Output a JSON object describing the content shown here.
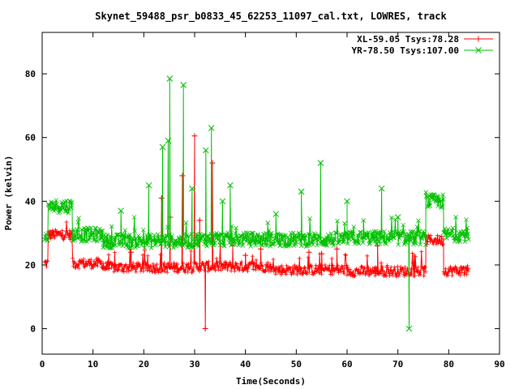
{
  "chart_data": {
    "type": "line",
    "title": "Skynet_59488_psr_b0833_45_62253_11097_cal.txt, LOWRES, track",
    "xlabel": "Time(Seconds)",
    "ylabel": "Power (kelvin)",
    "xlim": [
      0,
      90
    ],
    "ylim": [
      -8,
      93
    ],
    "xticks": [
      0,
      10,
      20,
      30,
      40,
      50,
      60,
      70,
      80,
      90
    ],
    "yticks": [
      0,
      20,
      40,
      60,
      80
    ],
    "grid": false,
    "legend_position": "top-right",
    "series": [
      {
        "name": "XL-59.05 Tsys:78.28",
        "color": "#ff0000",
        "marker": "plus",
        "segments": [
          {
            "x0": 0.5,
            "x1": 1.2,
            "mean": 20.5
          },
          {
            "x0": 1.2,
            "x1": 6.0,
            "mean": 29.5
          },
          {
            "x0": 6.0,
            "x1": 12.0,
            "mean": 20.5
          },
          {
            "x0": 12.0,
            "x1": 30.0,
            "mean": 19.2
          },
          {
            "x0": 30.0,
            "x1": 45.0,
            "mean": 19.5
          },
          {
            "x0": 45.0,
            "x1": 60.0,
            "mean": 18.5
          },
          {
            "x0": 60.0,
            "x1": 75.5,
            "mean": 18.0
          },
          {
            "x0": 75.5,
            "x1": 79.0,
            "mean": 27.8
          },
          {
            "x0": 79.0,
            "x1": 84.0,
            "mean": 18.2
          }
        ],
        "spikes": [
          {
            "x": 30.0,
            "y": 60.5
          },
          {
            "x": 33.5,
            "y": 52.0
          },
          {
            "x": 27.6,
            "y": 48.0
          },
          {
            "x": 32.1,
            "y": 0.0
          },
          {
            "x": 23.5,
            "y": 41.0
          },
          {
            "x": 25.2,
            "y": 35.0
          },
          {
            "x": 31.0,
            "y": 34.0
          },
          {
            "x": 17.5,
            "y": 24.0
          },
          {
            "x": 43.0,
            "y": 25.0
          },
          {
            "x": 52.5,
            "y": 24.0
          },
          {
            "x": 58.0,
            "y": 25.0
          },
          {
            "x": 66.0,
            "y": 26.0
          },
          {
            "x": 40.0,
            "y": 23.0
          },
          {
            "x": 37.5,
            "y": 26.0
          },
          {
            "x": 55.0,
            "y": 23.5
          }
        ]
      },
      {
        "name": "YR-78.50 Tsys:107.00",
        "color": "#00c000",
        "marker": "cross",
        "segments": [
          {
            "x0": 0.5,
            "x1": 1.2,
            "mean": 27.5
          },
          {
            "x0": 1.2,
            "x1": 6.0,
            "mean": 38.5
          },
          {
            "x0": 6.0,
            "x1": 12.0,
            "mean": 29.5
          },
          {
            "x0": 12.0,
            "x1": 30.0,
            "mean": 27.5
          },
          {
            "x0": 30.0,
            "x1": 45.0,
            "mean": 28.0
          },
          {
            "x0": 45.0,
            "x1": 60.0,
            "mean": 28.0
          },
          {
            "x0": 60.0,
            "x1": 75.5,
            "mean": 28.5
          },
          {
            "x0": 75.5,
            "x1": 79.0,
            "mean": 40.0
          },
          {
            "x0": 79.0,
            "x1": 84.0,
            "mean": 29.5
          }
        ],
        "spikes": [
          {
            "x": 25.1,
            "y": 78.5
          },
          {
            "x": 27.8,
            "y": 76.5
          },
          {
            "x": 33.3,
            "y": 63.0
          },
          {
            "x": 23.7,
            "y": 57.0
          },
          {
            "x": 32.2,
            "y": 56.0
          },
          {
            "x": 24.8,
            "y": 59.0
          },
          {
            "x": 54.8,
            "y": 52.0
          },
          {
            "x": 21.0,
            "y": 45.0
          },
          {
            "x": 72.2,
            "y": 0.0
          },
          {
            "x": 37.0,
            "y": 45.0
          },
          {
            "x": 51.0,
            "y": 43.0
          },
          {
            "x": 66.8,
            "y": 44.0
          },
          {
            "x": 60.0,
            "y": 40.0
          },
          {
            "x": 29.5,
            "y": 44.0
          },
          {
            "x": 35.5,
            "y": 40.0
          },
          {
            "x": 46.0,
            "y": 36.0
          },
          {
            "x": 70.0,
            "y": 35.0
          },
          {
            "x": 15.5,
            "y": 37.0
          }
        ]
      }
    ]
  }
}
